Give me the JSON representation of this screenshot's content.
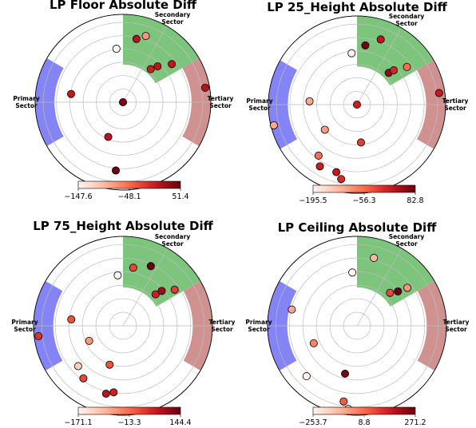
{
  "chart_data": [
    {
      "type": "scatter",
      "subtype": "polar",
      "title": "LP Floor Absolute Diff",
      "sectors": [
        "Primary Sector",
        "Secondary Sector",
        "Tertiary Sector"
      ],
      "rlim": [
        0,
        6
      ],
      "colorbar": {
        "min": -147.6,
        "max": 51.4,
        "ticks": [
          "−147.6",
          "−48.1",
          "51.4"
        ]
      },
      "points": [
        {
          "theta": 0,
          "r": 0,
          "value": 40
        },
        {
          "theta": 78,
          "r": 4.8,
          "value": 10
        },
        {
          "theta": 71,
          "r": 5.2,
          "value": -75
        },
        {
          "theta": 97,
          "r": 4.0,
          "value": -147
        },
        {
          "theta": 50,
          "r": 3.2,
          "value": 0
        },
        {
          "theta": 46,
          "r": 3.7,
          "value": 8
        },
        {
          "theta": 38,
          "r": 4.6,
          "value": 5
        },
        {
          "theta": 10,
          "r": 6.2,
          "value": 12
        },
        {
          "theta": 171,
          "r": 3.9,
          "value": 5
        },
        {
          "theta": 247,
          "r": 2.8,
          "value": 10
        },
        {
          "theta": 264,
          "r": 5.1,
          "value": 48
        }
      ]
    },
    {
      "type": "scatter",
      "subtype": "polar",
      "title": "LP 25_Height Absolute Diff",
      "sectors": [
        "Primary Sector",
        "Secondary Sector",
        "Tertiary Sector"
      ],
      "rlim": [
        0,
        6
      ],
      "colorbar": {
        "min": -195.5,
        "max": 82.8,
        "ticks": [
          "−195.5",
          "−56.3",
          "82.8"
        ]
      },
      "points": [
        {
          "theta": 0,
          "r": 0,
          "value": 10
        },
        {
          "theta": 82,
          "r": 4.4,
          "value": 75
        },
        {
          "theta": 70,
          "r": 5.1,
          "value": 20
        },
        {
          "theta": 96,
          "r": 3.8,
          "value": -195
        },
        {
          "theta": 45,
          "r": 3.3,
          "value": 50
        },
        {
          "theta": 43,
          "r": 3.7,
          "value": 0
        },
        {
          "theta": 37,
          "r": 4.6,
          "value": -60
        },
        {
          "theta": 8,
          "r": 6.1,
          "value": 15
        },
        {
          "theta": 176,
          "r": 3.5,
          "value": -110
        },
        {
          "theta": 194,
          "r": 6.3,
          "value": -110
        },
        {
          "theta": 218,
          "r": 3.0,
          "value": -100
        },
        {
          "theta": 233,
          "r": 4.7,
          "value": -60
        },
        {
          "theta": 239,
          "r": 5.3,
          "value": 10
        },
        {
          "theta": 253,
          "r": 5.2,
          "value": 15
        },
        {
          "theta": 258,
          "r": 5.6,
          "value": 0
        },
        {
          "theta": 276,
          "r": 2.8,
          "value": -20
        }
      ]
    },
    {
      "type": "scatter",
      "subtype": "polar",
      "title": "LP 75_Height Absolute Diff",
      "sectors": [
        "Primary Sector",
        "Secondary Sector",
        "Tertiary Sector"
      ],
      "rlim": [
        0,
        6
      ],
      "colorbar": {
        "min": -171.1,
        "max": 144.4,
        "ticks": [
          "−171.1",
          "−13.3",
          "144.4"
        ]
      },
      "points": [
        {
          "theta": 80,
          "r": 4.3,
          "value": 20
        },
        {
          "theta": 65,
          "r": 4.8,
          "value": 144
        },
        {
          "theta": 96,
          "r": 3.7,
          "value": -171
        },
        {
          "theta": 44,
          "r": 3.3,
          "value": 60
        },
        {
          "theta": 42,
          "r": 3.8,
          "value": 100
        },
        {
          "theta": 35,
          "r": 4.6,
          "value": 30
        },
        {
          "theta": 173,
          "r": 3.8,
          "value": 10
        },
        {
          "theta": 187,
          "r": 6.2,
          "value": 40
        },
        {
          "theta": 204,
          "r": 2.7,
          "value": -60
        },
        {
          "theta": 222,
          "r": 4.4,
          "value": -120
        },
        {
          "theta": 233,
          "r": 4.8,
          "value": 20
        },
        {
          "theta": 251,
          "r": 3.0,
          "value": 10
        },
        {
          "theta": 256,
          "r": 5.1,
          "value": 80
        },
        {
          "theta": 262,
          "r": 4.9,
          "value": 60
        }
      ]
    },
    {
      "type": "scatter",
      "subtype": "polar",
      "title": "LP Ceiling Absolute Diff",
      "sectors": [
        "Primary Sector",
        "Secondary Sector",
        "Tertiary Sector"
      ],
      "rlim": [
        0,
        6
      ],
      "colorbar": {
        "min": -253.7,
        "max": 271.2,
        "ticks": [
          "−253.7",
          "8.8",
          "271.2"
        ]
      },
      "points": [
        {
          "theta": 76,
          "r": 5.1,
          "value": -120
        },
        {
          "theta": 95,
          "r": 3.9,
          "value": -253
        },
        {
          "theta": 45,
          "r": 3.4,
          "value": 60
        },
        {
          "theta": 40,
          "r": 3.9,
          "value": 271
        },
        {
          "theta": 37,
          "r": 4.6,
          "value": -60
        },
        {
          "theta": 166,
          "r": 4.9,
          "value": -90
        },
        {
          "theta": 202,
          "r": 3.4,
          "value": -30
        },
        {
          "theta": 225,
          "r": 5.2,
          "value": -253
        },
        {
          "theta": 256,
          "r": 3.6,
          "value": 250
        },
        {
          "theta": 260,
          "r": 5.6,
          "value": 30
        },
        {
          "theta": 264,
          "r": 6.1,
          "value": -200
        }
      ]
    }
  ]
}
